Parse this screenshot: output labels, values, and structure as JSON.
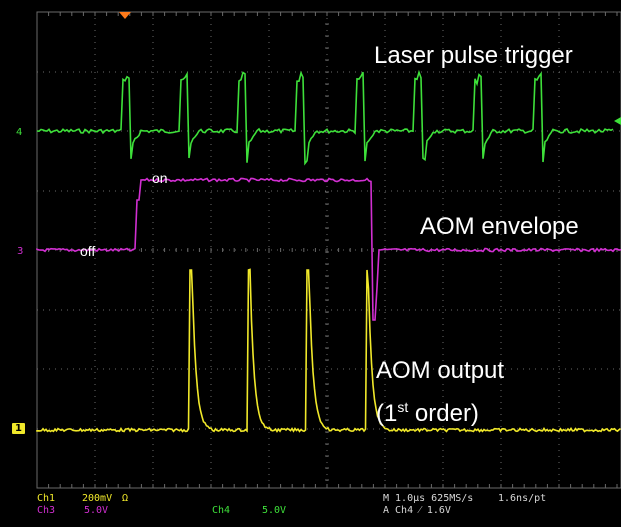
{
  "annotations": {
    "laser_label": "Laser pulse trigger",
    "envelope_label": "AOM envelope",
    "output_label_line1": "AOM output",
    "output_label_prefix": "(1",
    "output_label_sup": "st",
    "output_label_suffix": " order)",
    "on_label": "on",
    "off_label": "off"
  },
  "channel_markers": {
    "ch4": "4",
    "ch3": "3",
    "ch1": "1"
  },
  "status_bar": {
    "ch1_name": "Ch1",
    "ch1_scale": "200mV",
    "ch1_coupling": "Ω",
    "ch3_name": "Ch3",
    "ch3_scale": "5.0V",
    "ch4_name": "Ch4",
    "ch4_scale": "5.0V",
    "timebase": "M 1.0µs 625MS/s",
    "resolution": "1.6ns/pt",
    "trigger": "A  Ch4  ⁄  1.6V"
  },
  "colors": {
    "background": "#000000",
    "grid": "#6a6a6a",
    "ch1": "#f0e82a",
    "ch3": "#d22fd2",
    "ch4": "#3ee03a",
    "trigger_marker": "#ff7a1a",
    "label_text": "#ffffff"
  }
}
